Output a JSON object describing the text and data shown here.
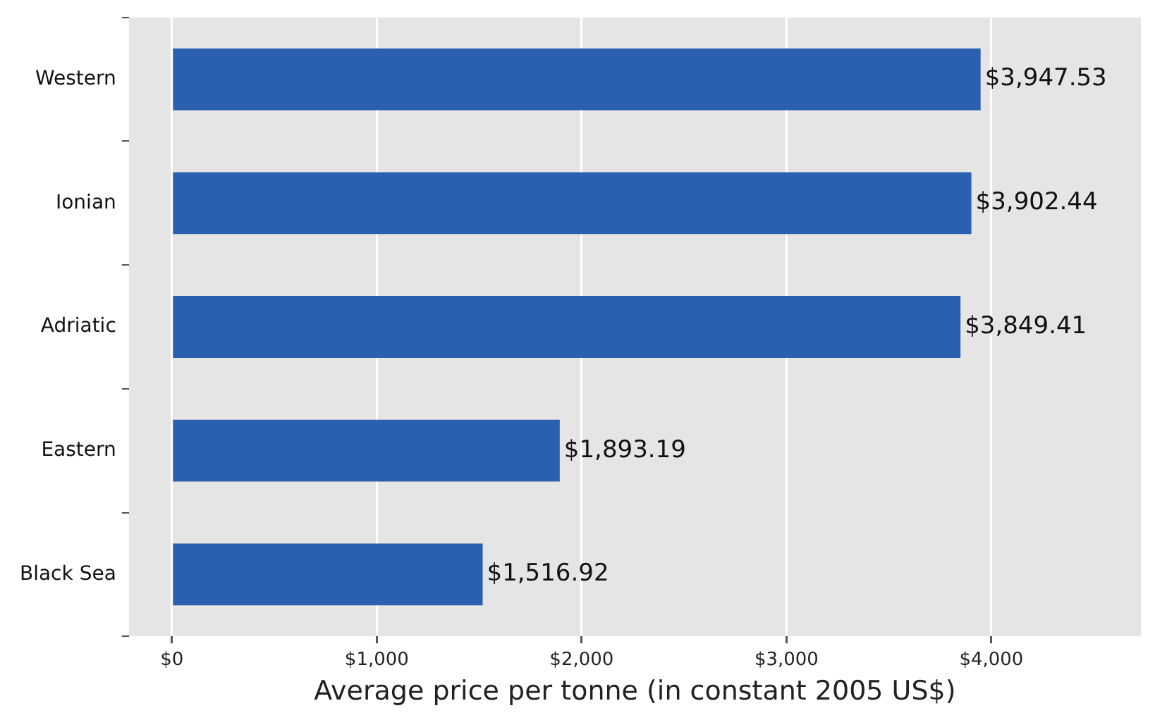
{
  "chart_data": {
    "type": "bar",
    "orientation": "horizontal",
    "xlabel": "Average price per tonne (in constant 2005 US$)",
    "categories": [
      "Western",
      "Ionian",
      "Adriatic",
      "Eastern",
      "Black Sea"
    ],
    "values": [
      3947.53,
      3902.44,
      3849.41,
      1893.19,
      1516.92
    ],
    "value_labels": [
      "$3,947.53",
      "$3,902.44",
      "$3,849.41",
      "$1,893.19",
      "$1,516.92"
    ],
    "color": "#2b5fb0",
    "xlim": [
      -210,
      4730
    ],
    "xticks": [
      {
        "value": 0,
        "label": "$0"
      },
      {
        "value": 1000,
        "label": "$1,000"
      },
      {
        "value": 2000,
        "label": "$2,000"
      },
      {
        "value": 3000,
        "label": "$3,000"
      },
      {
        "value": 4000,
        "label": "$4,000"
      }
    ],
    "grid": "x",
    "legend": false
  }
}
